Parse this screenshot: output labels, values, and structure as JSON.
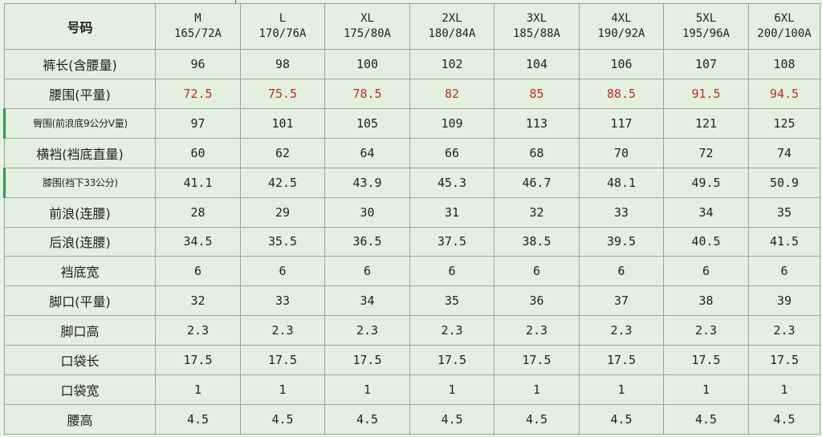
{
  "table": {
    "corner_label": "号码",
    "sizes": [
      {
        "size": "M",
        "spec": "165/72A"
      },
      {
        "size": "L",
        "spec": "170/76A"
      },
      {
        "size": "XL",
        "spec": "175/80A"
      },
      {
        "size": "2XL",
        "spec": "180/84A"
      },
      {
        "size": "3XL",
        "spec": "185/88A"
      },
      {
        "size": "4XL",
        "spec": "190/92A"
      },
      {
        "size": "5XL",
        "spec": "195/96A"
      },
      {
        "size": "6XL",
        "spec": "200/100A"
      }
    ],
    "rows": [
      {
        "label": "裤长(含腰量)",
        "values": [
          "96",
          "98",
          "100",
          "102",
          "104",
          "106",
          "107",
          "108"
        ]
      },
      {
        "label": "腰围(平量)",
        "values": [
          "72.5",
          "75.5",
          "78.5",
          "82",
          "85",
          "88.5",
          "91.5",
          "94.5"
        ],
        "highlight": "#c62a1f"
      },
      {
        "label": "臀围(前浪底9公分V量)",
        "values": [
          "97",
          "101",
          "105",
          "109",
          "113",
          "117",
          "121",
          "125"
        ]
      },
      {
        "label": "横裆(裆底直量)",
        "values": [
          "60",
          "62",
          "64",
          "66",
          "68",
          "70",
          "72",
          "74"
        ]
      },
      {
        "label": "膝围(裆下33公分)",
        "values": [
          "41.1",
          "42.5",
          "43.9",
          "45.3",
          "46.7",
          "48.1",
          "49.5",
          "50.9"
        ]
      },
      {
        "label": "前浪(连腰)",
        "values": [
          "28",
          "29",
          "30",
          "31",
          "32",
          "33",
          "34",
          "35"
        ]
      },
      {
        "label": "后浪(连腰)",
        "values": [
          "34.5",
          "35.5",
          "36.5",
          "37.5",
          "38.5",
          "39.5",
          "40.5",
          "41.5"
        ]
      },
      {
        "label": "裆底宽",
        "values": [
          "6",
          "6",
          "6",
          "6",
          "6",
          "6",
          "6",
          "6"
        ]
      },
      {
        "label": "脚口(平量)",
        "values": [
          "32",
          "33",
          "34",
          "35",
          "36",
          "37",
          "38",
          "39"
        ]
      },
      {
        "label": "脚口高",
        "values": [
          "2.3",
          "2.3",
          "2.3",
          "2.3",
          "2.3",
          "2.3",
          "2.3",
          "2.3"
        ]
      },
      {
        "label": "口袋长",
        "values": [
          "17.5",
          "17.5",
          "17.5",
          "17.5",
          "17.5",
          "17.5",
          "17.5",
          "17.5"
        ]
      },
      {
        "label": "口袋宽",
        "values": [
          "1",
          "1",
          "1",
          "1",
          "1",
          "1",
          "1",
          "1"
        ]
      },
      {
        "label": "腰高",
        "values": [
          "4.5",
          "4.5",
          "4.5",
          "4.5",
          "4.5",
          "4.5",
          "4.5",
          "4.5"
        ]
      }
    ]
  },
  "colors": {
    "background": "#e3f0df",
    "grid": "#9aa59a",
    "text": "#222222",
    "highlight_red": "#c62a1f",
    "accent_green": "#2f9a55"
  }
}
